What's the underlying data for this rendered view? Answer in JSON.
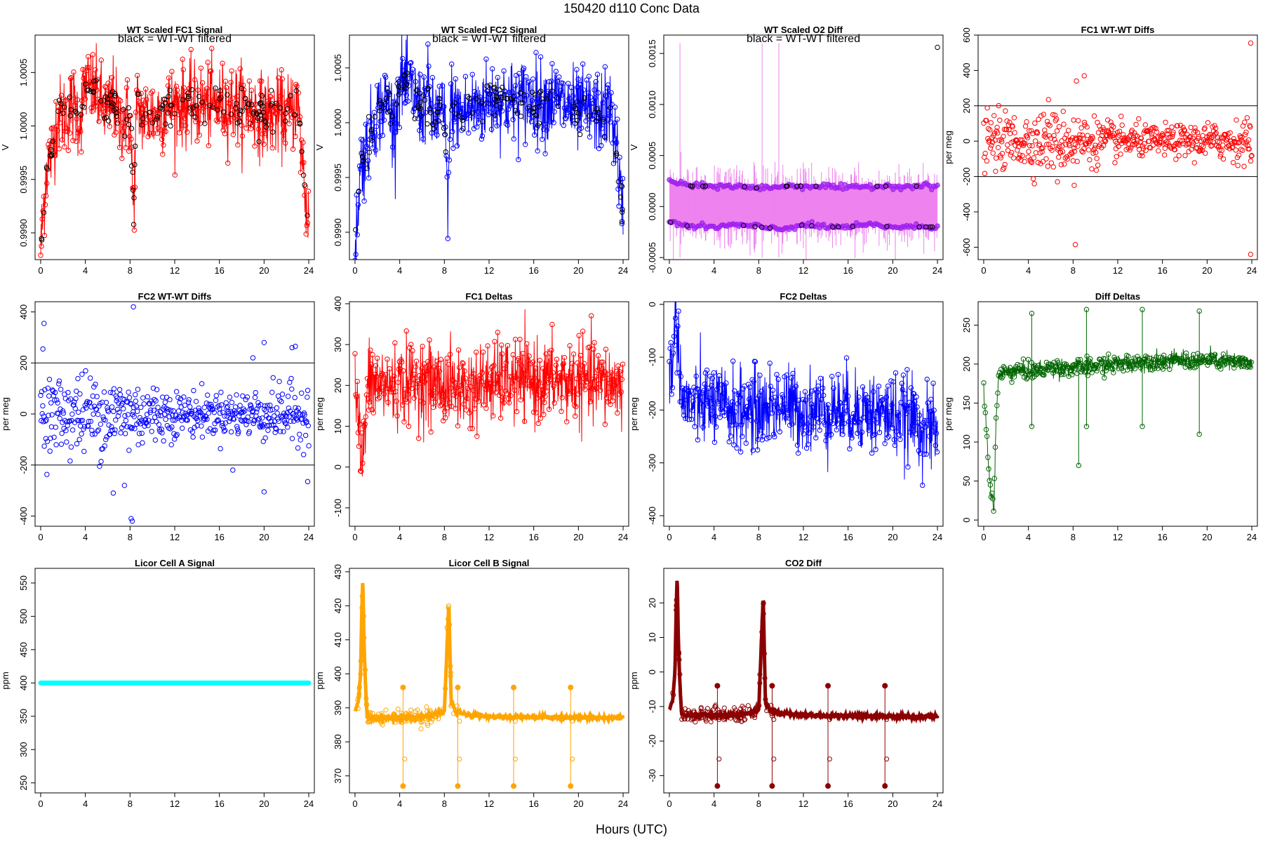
{
  "figure": {
    "title": "150420   d110   Conc Data",
    "xlabel": "Hours (UTC)"
  },
  "chart_data": [
    {
      "id": "fc1_signal",
      "type": "line",
      "title": "WT Scaled FC1 Signal",
      "annotation": "black = WT-WT filtered",
      "ylabel": "V",
      "xlim": [
        -0.5,
        24.5
      ],
      "ylim": [
        0.99875,
        1.00085
      ],
      "xticks": [
        0,
        4,
        8,
        12,
        16,
        20,
        24
      ],
      "yticks": [
        0.999,
        0.9995,
        1.0,
        1.0005
      ],
      "ytick_labels": [
        "0.9990",
        "0.9995",
        "1.0000",
        "1.0005"
      ],
      "color": "#ff0000",
      "overlay_color": "#000000",
      "style": "noisy-line-points",
      "series": [
        {
          "x": [
            0,
            0.5,
            1,
            1.5,
            2,
            3,
            3.5,
            4,
            4.5,
            5,
            6,
            6.5,
            7,
            7.5,
            8,
            8.3,
            8.6,
            9,
            10,
            12,
            14,
            16,
            18,
            20,
            22,
            23,
            23.5,
            23.8,
            24
          ],
          "y": [
            0.99885,
            0.9996,
            0.99975,
            1.0001,
            1.0001,
            1.0002,
            1.00005,
            1.0004,
            1.00035,
            1.0003,
            1.0001,
            1.0003,
            1.0,
            1.0001,
            1.00005,
            0.9992,
            1.0002,
            1.0001,
            1.0001,
            1.0002,
            1.0002,
            1.0002,
            1.0002,
            1.0001,
            1.0001,
            1.0002,
            0.9996,
            0.9992,
            0.99915
          ]
        }
      ]
    },
    {
      "id": "fc2_signal",
      "type": "line",
      "title": "WT Scaled FC2 Signal",
      "annotation": "black = WT-WT filtered",
      "ylabel": "V",
      "xlim": [
        -0.5,
        24.5
      ],
      "ylim": [
        0.99875,
        1.0008
      ],
      "xticks": [
        0,
        4,
        8,
        12,
        16,
        20,
        24
      ],
      "yticks": [
        0.999,
        0.9995,
        1.0,
        1.0005
      ],
      "ytick_labels": [
        "0.9990",
        "0.9995",
        "1.0000",
        "1.0005"
      ],
      "color": "#0000ff",
      "overlay_color": "#000000",
      "style": "noisy-line-points",
      "series": [
        {
          "x": [
            0,
            0.5,
            1,
            1.5,
            2,
            3,
            3.5,
            4,
            4.5,
            5,
            6,
            6.5,
            7,
            7.5,
            8,
            8.3,
            8.6,
            9,
            10,
            12,
            14,
            16,
            18,
            20,
            22,
            23,
            23.5,
            23.8,
            24
          ],
          "y": [
            0.99885,
            0.9996,
            0.99975,
            0.99995,
            1.0001,
            1.0002,
            0.99995,
            1.0004,
            1.00035,
            1.0003,
            1.0001,
            1.0003,
            1.0,
            1.0001,
            1.00005,
            0.9993,
            1.0002,
            1.0001,
            1.0001,
            1.0002,
            1.0002,
            1.0002,
            1.0002,
            1.0001,
            1.0001,
            1.0001,
            0.9997,
            0.9993,
            0.9991
          ]
        }
      ]
    },
    {
      "id": "o2_diff",
      "type": "line",
      "title": "WT Scaled O2 Diff",
      "annotation": "black = WT-WT filtered",
      "ylabel": "V",
      "xlim": [
        -0.5,
        24.5
      ],
      "ylim": [
        -0.00052,
        0.00168
      ],
      "xticks": [
        0,
        4,
        8,
        12,
        16,
        20,
        24
      ],
      "yticks": [
        -0.0005,
        0.0,
        0.0005,
        0.001,
        0.0015
      ],
      "ytick_labels": [
        "-0.0005",
        "0.0000",
        "0.0005",
        "0.0010",
        "0.0015"
      ],
      "color": "#ee82ee",
      "marker_color": "#a020f0",
      "overlay_color": "#000000",
      "style": "band",
      "band": {
        "x": [
          0,
          2,
          4,
          6,
          8,
          10,
          12,
          14,
          16,
          18,
          20,
          22,
          24
        ],
        "upper": [
          0.00025,
          0.0002,
          0.0002,
          0.0002,
          0.00018,
          0.0002,
          0.0002,
          0.0002,
          0.00018,
          0.0002,
          0.0002,
          0.0002,
          0.0002
        ],
        "lower": [
          -0.00015,
          -0.0002,
          -0.0002,
          -0.00018,
          -0.0002,
          -0.00022,
          -0.00018,
          -0.0002,
          -0.0002,
          -0.00018,
          -0.0002,
          -0.0002,
          -0.0002
        ]
      }
    },
    {
      "id": "fc1_wtwt",
      "type": "scatter",
      "title": "FC1 WT-WT Diffs",
      "ylabel": "per meg",
      "xlim": [
        -0.5,
        24.5
      ],
      "ylim": [
        -670,
        600
      ],
      "xticks": [
        0,
        4,
        8,
        12,
        16,
        20,
        24
      ],
      "yticks": [
        -600,
        -400,
        -200,
        0,
        200,
        400,
        600
      ],
      "hlines": [
        200,
        -200
      ],
      "color": "#ff0000",
      "spread": {
        "x": [
          0,
          4,
          8,
          12,
          16,
          20,
          24
        ],
        "sd": [
          75,
          80,
          80,
          50,
          40,
          50,
          60
        ]
      },
      "outliers": [
        [
          8.2,
          -585
        ],
        [
          8.3,
          340
        ],
        [
          9.0,
          370
        ],
        [
          23.9,
          555
        ],
        [
          23.9,
          -640
        ],
        [
          5.8,
          235
        ],
        [
          6.6,
          -230
        ],
        [
          8.1,
          -250
        ]
      ]
    },
    {
      "id": "fc2_wtwt",
      "type": "scatter",
      "title": "FC2 WT-WT Diffs",
      "ylabel": "per meg",
      "xlim": [
        -0.5,
        24.5
      ],
      "ylim": [
        -440,
        440
      ],
      "xticks": [
        0,
        4,
        8,
        12,
        16,
        20,
        24
      ],
      "yticks": [
        -400,
        -200,
        0,
        200,
        400
      ],
      "hlines": [
        200,
        -200
      ],
      "color": "#0000ff",
      "spread": {
        "x": [
          0,
          4,
          8,
          12,
          16,
          20,
          24
        ],
        "sd": [
          70,
          80,
          75,
          45,
          40,
          50,
          60
        ]
      },
      "outliers": [
        [
          8.3,
          420
        ],
        [
          8.2,
          -420
        ],
        [
          8.1,
          -410
        ],
        [
          0.3,
          355
        ],
        [
          0.2,
          255
        ],
        [
          6.5,
          -310
        ],
        [
          7.5,
          -280
        ],
        [
          20.0,
          -305
        ],
        [
          17.2,
          -220
        ],
        [
          23.9,
          -265
        ],
        [
          22.5,
          260
        ],
        [
          22.8,
          265
        ],
        [
          20.0,
          280
        ],
        [
          19.0,
          220
        ]
      ]
    },
    {
      "id": "fc1_deltas",
      "type": "line",
      "title": "FC1 Deltas",
      "ylabel": "per meg",
      "xlim": [
        -0.5,
        24.5
      ],
      "ylim": [
        -145,
        405
      ],
      "xticks": [
        0,
        4,
        8,
        12,
        16,
        20,
        24
      ],
      "yticks": [
        -100,
        0,
        100,
        200,
        300,
        400
      ],
      "color": "#ff0000",
      "style": "noisy-line-points",
      "series": [
        {
          "x": [
            0,
            0.3,
            0.6,
            0.9,
            1.2,
            2,
            4,
            6,
            8,
            10,
            12,
            14,
            16,
            18,
            20,
            22,
            24
          ],
          "y": [
            200,
            120,
            0,
            100,
            210,
            200,
            200,
            210,
            200,
            190,
            205,
            210,
            210,
            210,
            210,
            205,
            200
          ]
        }
      ]
    },
    {
      "id": "fc2_deltas",
      "type": "line",
      "title": "FC2 Deltas",
      "ylabel": "per meg",
      "xlim": [
        -0.5,
        24.5
      ],
      "ylim": [
        -420,
        5
      ],
      "xticks": [
        0,
        4,
        8,
        12,
        16,
        20,
        24
      ],
      "yticks": [
        -400,
        -300,
        -200,
        -100,
        0
      ],
      "color": "#0000ff",
      "style": "noisy-line-points",
      "series": [
        {
          "x": [
            0,
            0.3,
            0.6,
            0.9,
            1.2,
            2,
            4,
            6,
            8,
            10,
            12,
            14,
            16,
            18,
            20,
            22,
            24
          ],
          "y": [
            -140,
            -100,
            -20,
            -100,
            -190,
            -190,
            -190,
            -200,
            -200,
            -190,
            -200,
            -200,
            -200,
            -205,
            -210,
            -220,
            -250
          ]
        }
      ]
    },
    {
      "id": "diff_deltas",
      "type": "line",
      "title": "Diff Deltas",
      "ylabel": "per meg",
      "xlim": [
        -0.5,
        24.5
      ],
      "ylim": [
        -8,
        280
      ],
      "xticks": [
        0,
        4,
        8,
        12,
        16,
        20,
        24
      ],
      "yticks": [
        0,
        50,
        100,
        150,
        200,
        250
      ],
      "color": "#006400",
      "style": "step-line-points",
      "series": [
        {
          "x": [
            0,
            0.3,
            0.5,
            0.7,
            0.9,
            1.1,
            1.3,
            2,
            4,
            6,
            8,
            10,
            12,
            14,
            16,
            18,
            20,
            22,
            24
          ],
          "y": [
            170,
            100,
            60,
            30,
            10,
            120,
            185,
            190,
            192,
            195,
            195,
            198,
            200,
            203,
            205,
            205,
            205,
            203,
            200
          ]
        }
      ],
      "spikes": [
        [
          4.3,
          265
        ],
        [
          4.3,
          120
        ],
        [
          8.5,
          70
        ],
        [
          9.2,
          270
        ],
        [
          9.2,
          120
        ],
        [
          14.2,
          270
        ],
        [
          14.2,
          120
        ],
        [
          19.3,
          268
        ],
        [
          19.3,
          110
        ]
      ]
    },
    {
      "id": "licor_a",
      "type": "line",
      "title": "Licor Cell A Signal",
      "ylabel": "ppm",
      "xlim": [
        -0.5,
        24.5
      ],
      "ylim": [
        235,
        572
      ],
      "xticks": [
        0,
        4,
        8,
        12,
        16,
        20,
        24
      ],
      "yticks": [
        250,
        300,
        350,
        400,
        450,
        500,
        550
      ],
      "color": "#00ffff",
      "style": "flat-thick",
      "series": [
        {
          "x": [
            0,
            24
          ],
          "y": [
            400,
            400
          ]
        }
      ]
    },
    {
      "id": "licor_b",
      "type": "line",
      "title": "Licor Cell B Signal",
      "ylabel": "ppm",
      "xlim": [
        -0.5,
        24.5
      ],
      "ylim": [
        365,
        431
      ],
      "xticks": [
        0,
        4,
        8,
        12,
        16,
        20,
        24
      ],
      "yticks": [
        370,
        380,
        390,
        400,
        410,
        420,
        430
      ],
      "color": "#ffa500",
      "style": "baseline-spikes",
      "series": [
        {
          "x": [
            0,
            0.3,
            0.5,
            0.6,
            0.7,
            0.8,
            0.9,
            1.0,
            1.1,
            2,
            4,
            6,
            7,
            8,
            8.4,
            8.6,
            9,
            10,
            12,
            14,
            16,
            18,
            20,
            22,
            24
          ],
          "y": [
            389,
            392,
            400,
            418,
            428,
            410,
            400,
            392,
            387,
            387,
            387,
            387.5,
            388,
            389,
            421,
            392,
            389,
            388,
            387.5,
            387.3,
            387.2,
            387.2,
            387.1,
            387.1,
            387.1
          ]
        }
      ],
      "spikes": [
        [
          4.3,
          396
        ],
        [
          4.3,
          367
        ],
        [
          9.2,
          396
        ],
        [
          9.2,
          367
        ],
        [
          14.2,
          396
        ],
        [
          14.2,
          367
        ],
        [
          19.3,
          396
        ],
        [
          19.3,
          367
        ]
      ]
    },
    {
      "id": "co2_diff",
      "type": "line",
      "title": "CO2 Diff",
      "ylabel": "ppm",
      "xlim": [
        -0.5,
        24.5
      ],
      "ylim": [
        -35,
        30
      ],
      "xticks": [
        0,
        4,
        8,
        12,
        16,
        20,
        24
      ],
      "yticks": [
        -30,
        -20,
        -10,
        0,
        10,
        20
      ],
      "color": "#8b0000",
      "style": "baseline-spikes",
      "series": [
        {
          "x": [
            0,
            0.3,
            0.5,
            0.6,
            0.7,
            0.8,
            0.9,
            1.0,
            1.1,
            2,
            4,
            6,
            7,
            8,
            8.4,
            8.6,
            9,
            10,
            12,
            14,
            16,
            18,
            20,
            22,
            24
          ],
          "y": [
            -11,
            -8,
            0,
            17,
            28,
            10,
            0,
            -7,
            -12.5,
            -12.5,
            -12.5,
            -12.5,
            -12,
            -11,
            22,
            -9,
            -11,
            -12,
            -12.5,
            -12.7,
            -12.8,
            -12.8,
            -12.9,
            -12.9,
            -12.9
          ]
        }
      ],
      "spikes": [
        [
          4.3,
          -4
        ],
        [
          4.3,
          -33
        ],
        [
          9.2,
          -4
        ],
        [
          9.2,
          -33
        ],
        [
          14.2,
          -4
        ],
        [
          14.2,
          -33
        ],
        [
          19.3,
          -4
        ],
        [
          19.3,
          -33
        ]
      ]
    }
  ]
}
